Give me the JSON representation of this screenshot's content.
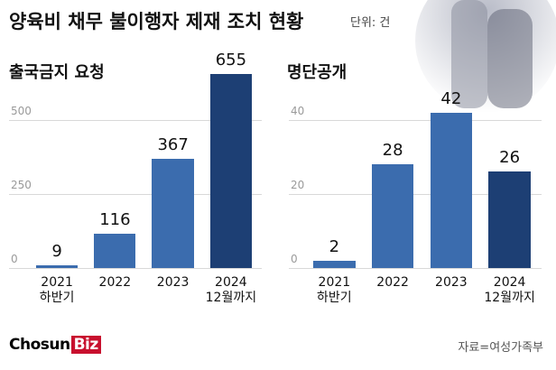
{
  "title": "양육비 채무 불이행자 제재 조치 현황",
  "unit": "단위: 건",
  "chart_data": [
    {
      "type": "bar",
      "title": "출국금지 요청",
      "categories": [
        "2021\n하반기",
        "2022",
        "2023",
        "2024\n12월까지"
      ],
      "values": [
        9,
        116,
        367,
        655
      ],
      "colors": [
        "#3b6cae",
        "#3b6cae",
        "#3b6cae",
        "#1d3f74"
      ],
      "ylim": [
        0,
        700
      ],
      "yticks": [
        0,
        250,
        500
      ],
      "grid": true
    },
    {
      "type": "bar",
      "title": "명단공개",
      "categories": [
        "2021\n하반기",
        "2022",
        "2023",
        "2024\n12월까지"
      ],
      "values": [
        2,
        28,
        42,
        26
      ],
      "colors": [
        "#3b6cae",
        "#3b6cae",
        "#3b6cae",
        "#1d3f74"
      ],
      "ylim": [
        0,
        50
      ],
      "yticks": [
        0,
        20,
        40
      ],
      "grid": true
    }
  ],
  "source": "자료=여성가족부",
  "logo": {
    "main": "Chosun",
    "accent": "Biz"
  }
}
